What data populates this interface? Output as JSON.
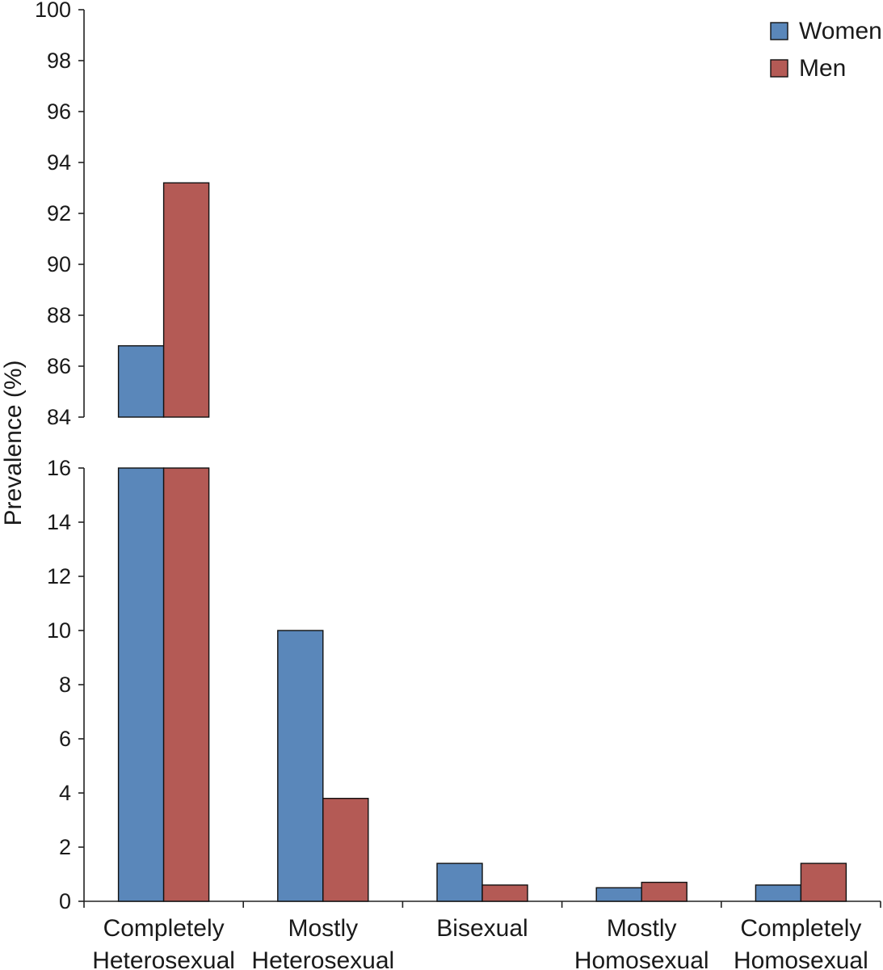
{
  "colors": {
    "women": "#5a87ba",
    "men": "#b45a55",
    "axis": "#222222"
  },
  "chart_data": {
    "type": "bar",
    "broken_axis": true,
    "ylabel": "Prevalence (%)",
    "categories": [
      [
        "Completely",
        "Heterosexual"
      ],
      [
        "Mostly",
        "Heterosexual"
      ],
      [
        "Bisexual"
      ],
      [
        "Mostly",
        "Homosexual"
      ],
      [
        "Completely",
        "Homosexual"
      ]
    ],
    "series": [
      {
        "name": "Women",
        "color": "#5a87ba",
        "values": [
          86.8,
          10.0,
          1.4,
          0.5,
          0.6
        ]
      },
      {
        "name": "Men",
        "color": "#b45a55",
        "values": [
          93.2,
          3.8,
          0.6,
          0.7,
          1.4
        ]
      }
    ],
    "lower_axis": {
      "ylim": [
        0,
        16
      ],
      "ticks": [
        "0",
        "2",
        "4",
        "6",
        "8",
        "10",
        "12",
        "14",
        "16"
      ]
    },
    "upper_axis": {
      "ylim": [
        84,
        100
      ],
      "ticks": [
        "84",
        "86",
        "88",
        "90",
        "92",
        "94",
        "96",
        "98",
        "100"
      ]
    },
    "legend_position": "top-right"
  }
}
